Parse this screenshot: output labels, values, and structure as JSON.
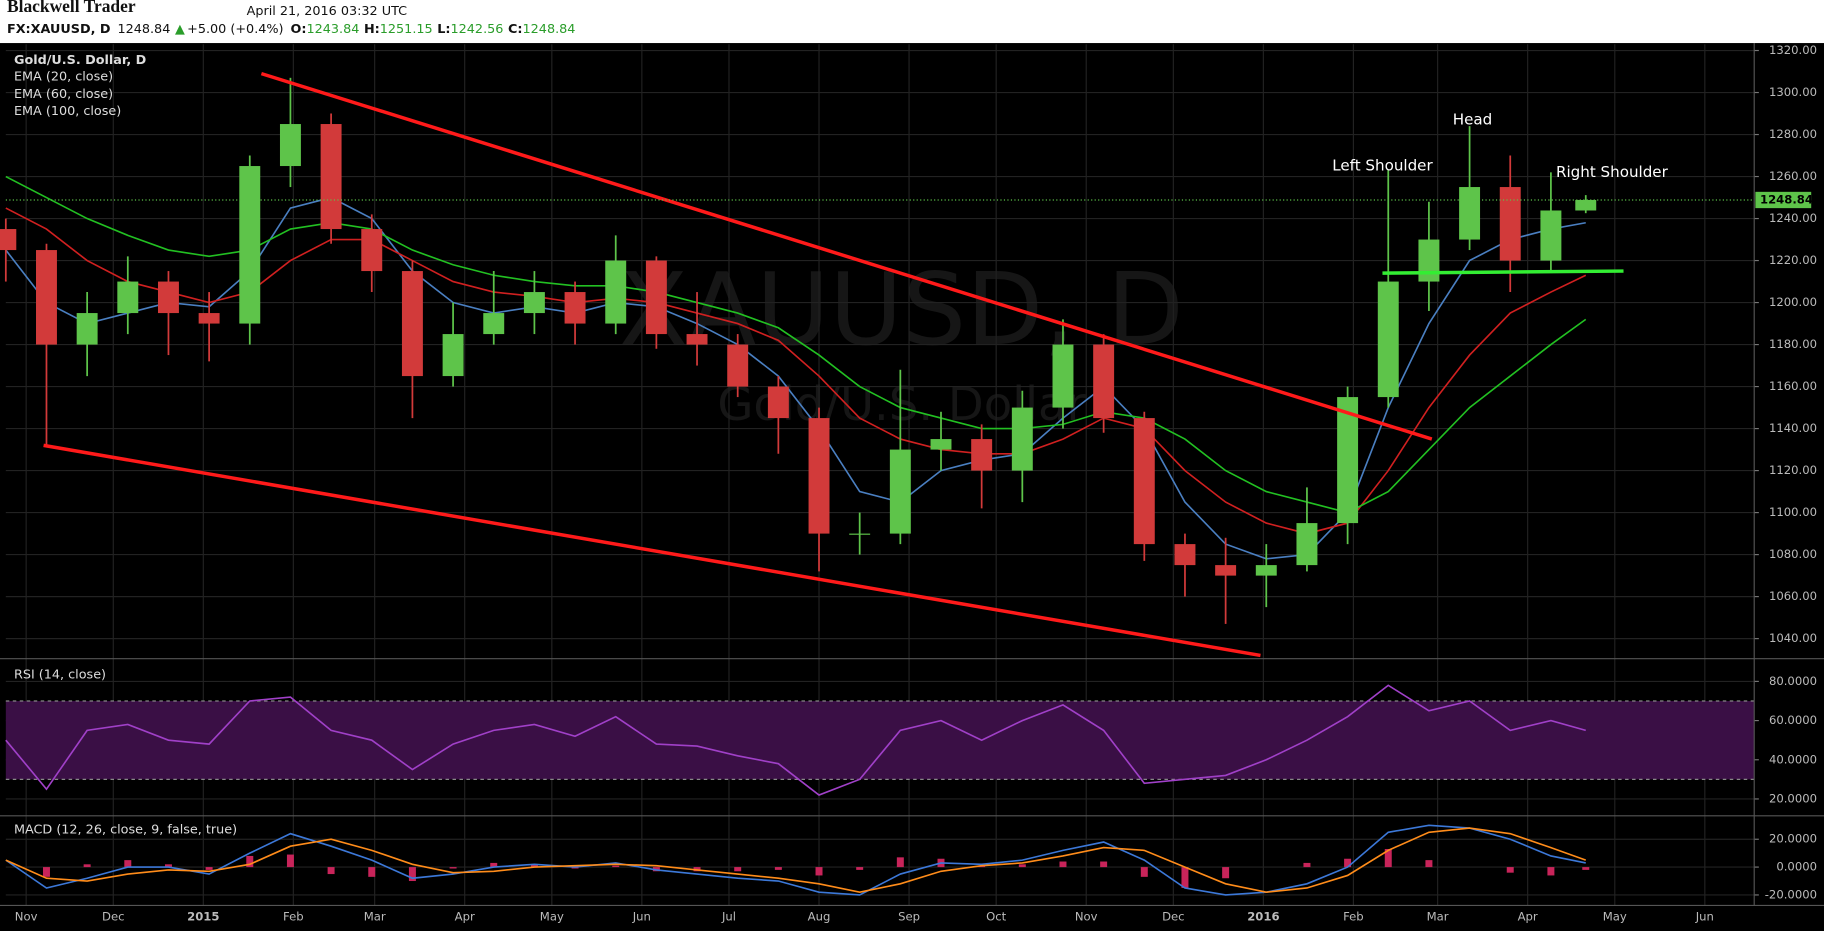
{
  "header": {
    "brand": "Blackwell Trader",
    "timestamp": "April 21, 2016 03:32 UTC",
    "symbol": "FX:XAUUSD, D",
    "arrow": "▲",
    "change": "+5.00 (+0.4%)",
    "o_label": "O:",
    "h_label": "H:",
    "l_label": "L:",
    "c_label": "C:"
  },
  "chart_data": [
    {
      "type": "candlestick",
      "title": "Gold/U.S. Dollar, D",
      "watermark": {
        "symbol": "XAUUSD, D",
        "description": "Gold/U.S. Dollar"
      },
      "up_color": "#5ec44a",
      "down_color": "#d23a3a",
      "grid": true,
      "x": [
        -7,
        7,
        21,
        35,
        49,
        63,
        77,
        91,
        105,
        119,
        133,
        147,
        161,
        175,
        189,
        203,
        217,
        231,
        245,
        259,
        273,
        287,
        301,
        315,
        329,
        343,
        357,
        371,
        385,
        399,
        413,
        427,
        441,
        455,
        469,
        483,
        497,
        511,
        525,
        537
      ],
      "open": [
        1235,
        1225,
        1180,
        1195,
        1210,
        1195,
        1190,
        1265,
        1285,
        1235,
        1215,
        1165,
        1185,
        1195,
        1205,
        1190,
        1220,
        1185,
        1180,
        1160,
        1145,
        1090,
        1090,
        1130,
        1135,
        1120,
        1150,
        1180,
        1145,
        1085,
        1075,
        1070,
        1075,
        1095,
        1155,
        1210,
        1230,
        1255,
        1220,
        1243.84
      ],
      "high": [
        1240,
        1228,
        1205,
        1222,
        1215,
        1205,
        1270,
        1307,
        1290,
        1242,
        1220,
        1200,
        1215,
        1215,
        1210,
        1232,
        1222,
        1205,
        1185,
        1165,
        1150,
        1100,
        1168,
        1148,
        1142,
        1158,
        1192,
        1185,
        1148,
        1090,
        1088,
        1085,
        1112,
        1160,
        1263,
        1248,
        1284,
        1270,
        1262,
        1251.15
      ],
      "low": [
        1210,
        1132,
        1165,
        1185,
        1175,
        1172,
        1180,
        1255,
        1228,
        1205,
        1145,
        1160,
        1180,
        1185,
        1180,
        1185,
        1178,
        1170,
        1155,
        1128,
        1072,
        1080,
        1085,
        1120,
        1102,
        1105,
        1140,
        1138,
        1077,
        1060,
        1047,
        1055,
        1072,
        1085,
        1150,
        1196,
        1225,
        1205,
        1215,
        1242.56
      ],
      "close": [
        1225,
        1180,
        1195,
        1210,
        1195,
        1190,
        1265,
        1285,
        1235,
        1215,
        1165,
        1185,
        1195,
        1205,
        1190,
        1220,
        1185,
        1180,
        1160,
        1145,
        1090,
        1090,
        1130,
        1135,
        1120,
        1150,
        1180,
        1145,
        1085,
        1075,
        1070,
        1075,
        1095,
        1155,
        1210,
        1230,
        1255,
        1220,
        1243.84,
        1248.84
      ],
      "series": [
        {
          "name": "EMA (20, close)",
          "color": "#4a7fc1",
          "values": [
            1225,
            1200,
            1190,
            1195,
            1200,
            1198,
            1215,
            1245,
            1250,
            1240,
            1215,
            1200,
            1195,
            1198,
            1195,
            1200,
            1198,
            1190,
            1180,
            1165,
            1140,
            1110,
            1105,
            1120,
            1125,
            1128,
            1145,
            1160,
            1140,
            1105,
            1085,
            1078,
            1080,
            1100,
            1150,
            1190,
            1220,
            1230,
            1235,
            1238
          ]
        },
        {
          "name": "EMA (60, close)",
          "color": "#d02020",
          "values": [
            1245,
            1235,
            1220,
            1210,
            1205,
            1200,
            1205,
            1220,
            1230,
            1230,
            1220,
            1210,
            1205,
            1203,
            1200,
            1202,
            1200,
            1195,
            1190,
            1182,
            1165,
            1145,
            1135,
            1130,
            1128,
            1128,
            1135,
            1145,
            1140,
            1120,
            1105,
            1095,
            1090,
            1095,
            1120,
            1150,
            1175,
            1195,
            1205,
            1213
          ]
        },
        {
          "name": "EMA (100, close)",
          "color": "#22c022",
          "values": [
            1260,
            1250,
            1240,
            1232,
            1225,
            1222,
            1225,
            1235,
            1238,
            1235,
            1225,
            1218,
            1213,
            1210,
            1208,
            1208,
            1205,
            1200,
            1195,
            1188,
            1175,
            1160,
            1150,
            1145,
            1140,
            1140,
            1142,
            1148,
            1145,
            1135,
            1120,
            1110,
            1105,
            1100,
            1110,
            1130,
            1150,
            1165,
            1180,
            1192
          ]
        }
      ],
      "trend_lines": [
        {
          "color": "#ff1a1a",
          "x": [
            81,
            484
          ],
          "y": [
            1309,
            1135
          ]
        },
        {
          "color": "#ff1a1a",
          "x": [
            6,
            425
          ],
          "y": [
            1132,
            1032
          ]
        },
        {
          "color": "#33ee33",
          "x": [
            467,
            550
          ],
          "y": [
            1214,
            1215
          ]
        }
      ],
      "annotations": [
        {
          "text": "Left Shoulder",
          "x": 467,
          "y": 1265
        },
        {
          "text": "Head",
          "x": 498,
          "y": 1287
        },
        {
          "text": "Right Shoulder",
          "x": 546,
          "y": 1262
        }
      ],
      "xlim": [
        -7,
        595
      ],
      "xticks": [
        {
          "value": 0,
          "label": "Nov"
        },
        {
          "value": 30,
          "label": "Dec"
        },
        {
          "value": 61,
          "label": "2015"
        },
        {
          "value": 92,
          "label": "Feb"
        },
        {
          "value": 120,
          "label": "Mar"
        },
        {
          "value": 151,
          "label": "Apr"
        },
        {
          "value": 181,
          "label": "May"
        },
        {
          "value": 212,
          "label": "Jun"
        },
        {
          "value": 242,
          "label": "Jul"
        },
        {
          "value": 273,
          "label": "Aug"
        },
        {
          "value": 304,
          "label": "Sep"
        },
        {
          "value": 334,
          "label": "Oct"
        },
        {
          "value": 365,
          "label": "Nov"
        },
        {
          "value": 395,
          "label": "Dec"
        },
        {
          "value": 426,
          "label": "2016"
        },
        {
          "value": 457,
          "label": "Feb"
        },
        {
          "value": 486,
          "label": "Mar"
        },
        {
          "value": 517,
          "label": "Apr"
        },
        {
          "value": 547,
          "label": "May"
        },
        {
          "value": 578,
          "label": "Jun"
        }
      ],
      "ylim": [
        1031,
        1323
      ],
      "yticks": [
        {
          "value": 1040,
          "label": "1040.00"
        },
        {
          "value": 1060,
          "label": "1060.00"
        },
        {
          "value": 1080,
          "label": "1080.00"
        },
        {
          "value": 1100,
          "label": "1100.00"
        },
        {
          "value": 1120,
          "label": "1120.00"
        },
        {
          "value": 1140,
          "label": "1140.00"
        },
        {
          "value": 1160,
          "label": "1160.00"
        },
        {
          "value": 1180,
          "label": "1180.00"
        },
        {
          "value": 1200,
          "label": "1200.00"
        },
        {
          "value": 1220,
          "label": "1220.00"
        },
        {
          "value": 1240,
          "label": "1240.00"
        },
        {
          "value": 1260,
          "label": "1260.00"
        },
        {
          "value": 1280,
          "label": "1280.00"
        },
        {
          "value": 1300,
          "label": "1300.00"
        },
        {
          "value": 1320,
          "label": "1320.00"
        }
      ]
    },
    {
      "type": "line",
      "grid": true,
      "series": [
        {
          "name": "RSI (14, close)",
          "color": "#a040c8",
          "values": [
            50,
            25,
            55,
            58,
            50,
            48,
            70,
            72,
            55,
            50,
            35,
            48,
            55,
            58,
            52,
            62,
            48,
            47,
            42,
            38,
            22,
            30,
            55,
            60,
            50,
            60,
            68,
            55,
            28,
            30,
            32,
            40,
            50,
            62,
            78,
            65,
            70,
            55,
            60,
            55
          ]
        }
      ],
      "band": {
        "lower": 30,
        "upper": 70,
        "color": "#3a0f45"
      },
      "ylim": [
        12,
        91
      ],
      "yticks": [
        {
          "value": 20,
          "label": "20.0000"
        },
        {
          "value": 40,
          "label": "40.0000"
        },
        {
          "value": 60,
          "label": "60.0000"
        },
        {
          "value": 80,
          "label": "80.0000"
        }
      ]
    },
    {
      "type": "line",
      "title": "MACD (12, 26, close, 9, false, true)",
      "grid": true,
      "series": [
        {
          "color": "#3c78d8",
          "values": [
            5,
            -15,
            -8,
            0,
            0,
            -5,
            10,
            24,
            15,
            5,
            -8,
            -5,
            0,
            2,
            0,
            3,
            -2,
            -5,
            -8,
            -10,
            -18,
            -20,
            -5,
            3,
            2,
            5,
            12,
            18,
            5,
            -15,
            -20,
            -18,
            -12,
            0,
            25,
            30,
            28,
            20,
            8,
            3
          ]
        },
        {
          "color": "#ff8c1a",
          "values": [
            5,
            -8,
            -10,
            -5,
            -2,
            -3,
            2,
            15,
            20,
            12,
            2,
            -4,
            -3,
            0,
            1,
            2,
            1,
            -2,
            -5,
            -8,
            -12,
            -18,
            -12,
            -3,
            1,
            3,
            8,
            14,
            12,
            0,
            -12,
            -18,
            -15,
            -6,
            12,
            25,
            28,
            24,
            14,
            5
          ]
        }
      ],
      "histogram": {
        "color": "#c8245a",
        "values": [
          0,
          -7,
          2,
          5,
          2,
          -2,
          8,
          9,
          -5,
          -7,
          -10,
          -1,
          3,
          2,
          -1,
          1,
          -3,
          -3,
          -3,
          -2,
          -6,
          -2,
          7,
          6,
          1,
          2,
          4,
          4,
          -7,
          -15,
          -8,
          0,
          3,
          6,
          13,
          5,
          0,
          -4,
          -6,
          -2
        ]
      },
      "ylim": [
        -27.5,
        36
      ],
      "yticks": [
        {
          "value": -20,
          "label": "-20.0000"
        },
        {
          "value": 0,
          "label": "0.0000"
        },
        {
          "value": 20,
          "label": "20.0000"
        }
      ]
    }
  ]
}
